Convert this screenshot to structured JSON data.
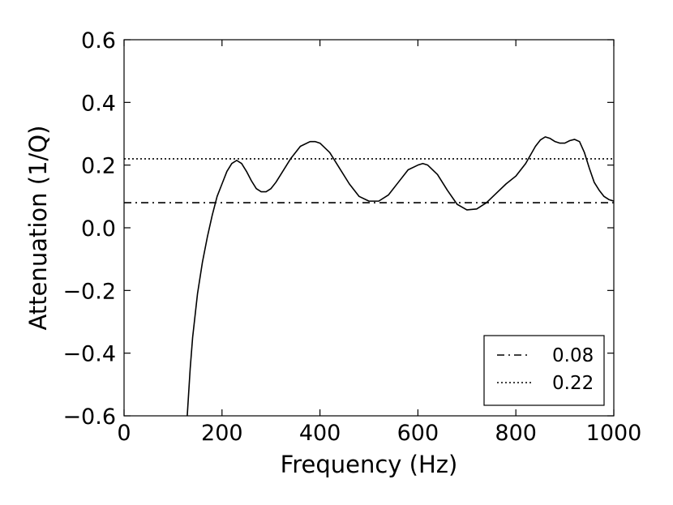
{
  "chart_data": {
    "type": "line",
    "title": "",
    "xlabel": "Frequency (Hz)",
    "ylabel": "Attenuation (1/Q)",
    "xlim": [
      0,
      1000
    ],
    "ylim": [
      -0.6,
      0.6
    ],
    "x_ticks": [
      "0",
      "200",
      "400",
      "600",
      "800",
      "1000"
    ],
    "y_ticks": [
      "−0.6",
      "−0.4",
      "−0.2",
      "0.0",
      "0.2",
      "0.4",
      "0.6"
    ],
    "grid": false,
    "legend_position": "lower-right",
    "series": [
      {
        "name": "",
        "style": "solid",
        "color": "#000000",
        "x": [
          129,
          135,
          140,
          150,
          160,
          170,
          180,
          190,
          200,
          210,
          220,
          230,
          240,
          250,
          260,
          270,
          280,
          290,
          300,
          310,
          320,
          340,
          360,
          380,
          390,
          400,
          420,
          440,
          460,
          480,
          500,
          520,
          540,
          560,
          580,
          600,
          610,
          620,
          640,
          660,
          680,
          700,
          720,
          740,
          760,
          780,
          800,
          820,
          840,
          850,
          860,
          870,
          880,
          890,
          900,
          910,
          920,
          930,
          940,
          950,
          960,
          970,
          980,
          990,
          1000
        ],
        "y": [
          -0.6,
          -0.45,
          -0.35,
          -0.21,
          -0.11,
          -0.03,
          0.04,
          0.1,
          0.14,
          0.18,
          0.205,
          0.215,
          0.205,
          0.18,
          0.15,
          0.125,
          0.115,
          0.115,
          0.125,
          0.145,
          0.17,
          0.22,
          0.26,
          0.275,
          0.275,
          0.27,
          0.24,
          0.19,
          0.14,
          0.1,
          0.085,
          0.085,
          0.105,
          0.145,
          0.185,
          0.2,
          0.205,
          0.2,
          0.17,
          0.12,
          0.075,
          0.057,
          0.06,
          0.08,
          0.11,
          0.14,
          0.165,
          0.205,
          0.26,
          0.28,
          0.29,
          0.285,
          0.275,
          0.27,
          0.27,
          0.278,
          0.282,
          0.275,
          0.24,
          0.19,
          0.145,
          0.12,
          0.1,
          0.09,
          0.085
        ]
      },
      {
        "name": "0.08",
        "style": "dashdot",
        "color": "#000000",
        "x": [
          0,
          1000
        ],
        "y": [
          0.08,
          0.08
        ]
      },
      {
        "name": "0.22",
        "style": "dotted",
        "color": "#000000",
        "x": [
          0,
          1000
        ],
        "y": [
          0.22,
          0.22
        ]
      }
    ]
  }
}
